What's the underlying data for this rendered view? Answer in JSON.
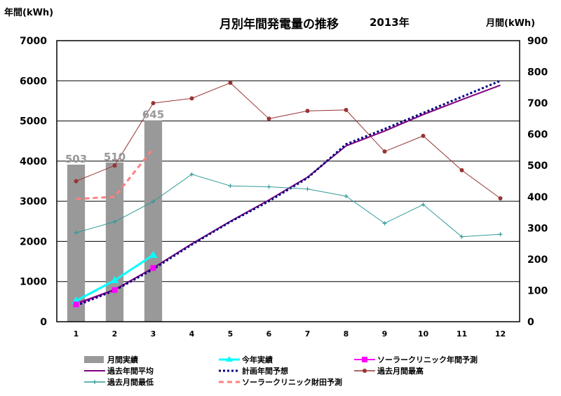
{
  "chart_data": {
    "type": "bar+line",
    "title": "月別年間発電量の推移",
    "year_label": "2013年",
    "left_axis": {
      "label": "年間(kWh)",
      "ylim": [
        0,
        7000
      ],
      "ticks": [
        "0",
        "1000",
        "2000",
        "3000",
        "4000",
        "5000",
        "6000",
        "7000"
      ]
    },
    "right_axis": {
      "label": "月間(kWh)",
      "ylim": [
        0,
        900
      ],
      "ticks": [
        "0",
        "100",
        "200",
        "300",
        "400",
        "500",
        "600",
        "700",
        "800",
        "900"
      ]
    },
    "categories": [
      "1",
      "2",
      "3",
      "4",
      "5",
      "6",
      "7",
      "8",
      "9",
      "10",
      "11",
      "12"
    ],
    "grid": true,
    "legend_placement": "bottom",
    "bars": {
      "name": "月間実績",
      "axis": "right",
      "color": "#999999",
      "values": [
        503,
        510,
        645,
        null,
        null,
        null,
        null,
        null,
        null,
        null,
        null,
        null
      ],
      "labels": [
        "503",
        "510",
        "645"
      ]
    },
    "series": [
      {
        "name": "今年実績",
        "axis": "left",
        "color": "#00FFFF",
        "style": "solid",
        "marker": "triangle",
        "width": 3,
        "values": [
          520,
          1030,
          1660,
          null,
          null,
          null,
          null,
          null,
          null,
          null,
          null,
          null
        ]
      },
      {
        "name": "ソーラークリニック年間予測",
        "axis": "left",
        "color": "#FF00FF",
        "style": "solid",
        "marker": "square",
        "width": 2,
        "values": [
          430,
          790,
          1340,
          null,
          null,
          null,
          null,
          null,
          null,
          null,
          null,
          null
        ]
      },
      {
        "name": "過去年間平均",
        "axis": "left",
        "color": "#800080",
        "style": "solid",
        "marker": "none",
        "width": 2,
        "values": [
          450,
          800,
          1340,
          1940,
          2500,
          3030,
          3600,
          4380,
          4750,
          5160,
          5530,
          5890
        ]
      },
      {
        "name": "計画年間予想",
        "axis": "left",
        "color": "#000080",
        "style": "dotted",
        "marker": "none",
        "width": 3,
        "values": [
          400,
          780,
          1310,
          1920,
          2490,
          3000,
          3580,
          4420,
          4800,
          5200,
          5600,
          6000
        ]
      },
      {
        "name": "過去月間最高",
        "axis": "right",
        "color": "#993333",
        "style": "solid",
        "marker": "circle",
        "width": 1,
        "values": [
          450,
          500,
          700,
          715,
          765,
          650,
          675,
          678,
          545,
          595,
          485,
          395
        ]
      },
      {
        "name": "過去月間最低",
        "axis": "right",
        "color": "#339999",
        "style": "solid",
        "marker": "plus",
        "width": 1,
        "values": [
          285,
          320,
          385,
          472,
          435,
          432,
          425,
          402,
          315,
          375,
          272,
          280
        ]
      },
      {
        "name": "ソーラークリニック財田予測",
        "axis": "right",
        "color": "#FF8080",
        "style": "dashed",
        "marker": "none",
        "width": 3,
        "values": [
          393,
          400,
          555,
          null,
          null,
          null,
          null,
          null,
          null,
          null,
          null,
          null
        ]
      }
    ]
  }
}
